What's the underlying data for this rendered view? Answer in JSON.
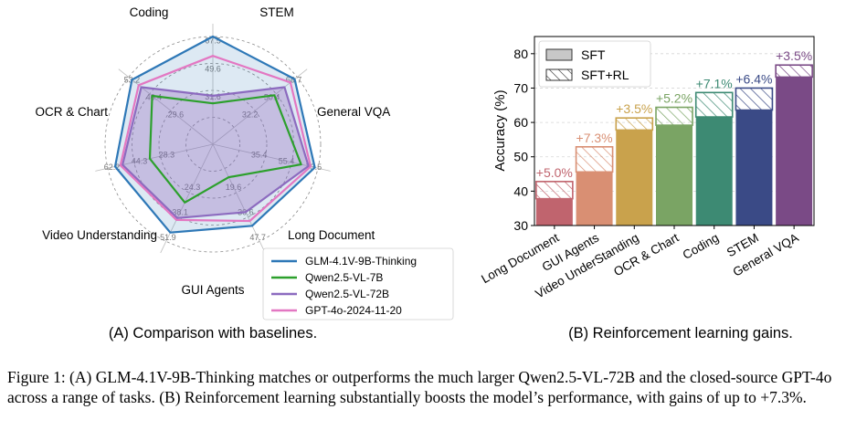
{
  "radar": {
    "categories": [
      "Coding",
      "STEM",
      "General VQA",
      "Long Document",
      "GUI Agents",
      "Video Understanding",
      "OCR & Chart"
    ],
    "series": [
      {
        "name": "GLM-4.1V-9B-Thinking",
        "color": "#2e78b7",
        "fill": "rgba(46,120,183,0.16)",
        "values": [
          100,
          97,
          97,
          84,
          91,
          93,
          96
        ]
      },
      {
        "name": "Qwen2.5-VL-7B",
        "color": "#2ca02c",
        "fill": "none",
        "values": [
          38,
          73,
          84,
          34,
          60,
          60,
          72
        ]
      },
      {
        "name": "Qwen2.5-VL-72B",
        "color": "#8c6bbf",
        "fill": "rgba(148,103,189,0.33)",
        "values": [
          45,
          85,
          91,
          70,
          76,
          86,
          85
        ]
      },
      {
        "name": "GPT-4o-2024-11-20",
        "color": "#e377c2",
        "fill": "none",
        "values": [
          82,
          92,
          93,
          79,
          78,
          88,
          88
        ]
      }
    ],
    "tick_labels": [
      [
        "67.5",
        "49.6",
        "31.6"
      ],
      [
        "68.7",
        "50.4",
        "32.2"
      ],
      [
        "73.5",
        "55.4",
        "35.4"
      ],
      [
        "47.7",
        "30.6",
        "19.6"
      ],
      [
        "51.9",
        "38.1",
        "24.3"
      ],
      [
        "62.2",
        "44.3",
        "28.3"
      ],
      [
        "53.2",
        "46.4",
        "29.6"
      ]
    ]
  },
  "chart_data": [
    {
      "type": "radar",
      "title": "(A) Comparison with baselines.",
      "categories": [
        "Coding",
        "STEM",
        "General VQA",
        "Long Document",
        "GUI Agents",
        "Video Understanding",
        "OCR & Chart"
      ],
      "series": [
        {
          "name": "GLM-4.1V-9B-Thinking",
          "values": [
            100,
            97,
            97,
            84,
            91,
            93,
            96
          ]
        },
        {
          "name": "Qwen2.5-VL-7B",
          "values": [
            38,
            73,
            84,
            34,
            60,
            60,
            72
          ]
        },
        {
          "name": "Qwen2.5-VL-72B",
          "values": [
            45,
            85,
            91,
            70,
            76,
            86,
            85
          ]
        },
        {
          "name": "GPT-4o-2024-11-20",
          "values": [
            82,
            92,
            93,
            79,
            78,
            88,
            88
          ]
        }
      ],
      "legend": "bottom-right"
    },
    {
      "type": "bar",
      "title": "(B) Reinforcement learning gains.",
      "ylabel": "Accuracy (%)",
      "ylim": [
        30,
        85
      ],
      "yticks": [
        30,
        40,
        50,
        60,
        70,
        80
      ],
      "categories": [
        "Long Document",
        "GUI Agents",
        "Video UnderStanding",
        "OCR & Chart",
        "Coding",
        "STEM",
        "General VQA"
      ],
      "series": [
        {
          "name": "SFT",
          "values": [
            37.8,
            45.6,
            57.8,
            59.2,
            61.6,
            63.6,
            73.2
          ]
        },
        {
          "name": "SFT+RL",
          "values": [
            42.8,
            52.9,
            61.3,
            64.4,
            68.7,
            70.0,
            76.7
          ]
        }
      ],
      "gain_labels": [
        "+5.0%",
        "+7.3%",
        "+3.5%",
        "+5.2%",
        "+7.1%",
        "+6.4%",
        "+3.5%"
      ],
      "colors": [
        "#c0646e",
        "#d98f73",
        "#c9a24c",
        "#7aa464",
        "#3d8a73",
        "#3a4a86",
        "#7a4a86"
      ],
      "legend": "top-left",
      "grid": "y"
    }
  ],
  "caption": "Figure 1: (A) GLM-4.1V-9B-Thinking matches or outperforms the much larger Qwen2.5-VL-72B and the closed-source GPT-4o across a range of tasks. (B) Reinforcement learning substantially boosts the model’s performance, with gains of up to +7.3%."
}
